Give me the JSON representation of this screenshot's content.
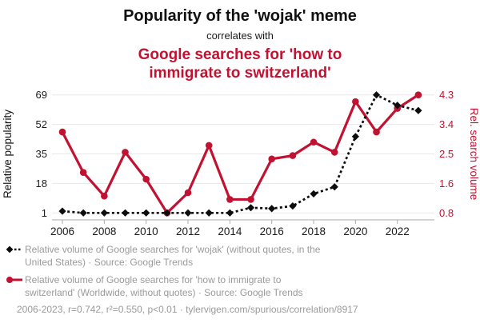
{
  "header": {
    "title": "Popularity of the 'wojak' meme",
    "connector": "correlates with",
    "subtitle_line1": "Google searches for 'how to",
    "subtitle_line2": "immigrate to switzerland'"
  },
  "colors": {
    "red": "#c11232",
    "black": "#0d0d0d",
    "gray_text": "#9a9a9a",
    "grid": "#e8e8e8",
    "axis": "#ababab"
  },
  "chart_data": {
    "type": "line",
    "title": "Popularity of the 'wojak' meme correlates with Google searches for 'how to immigrate to switzerland'",
    "x": [
      2006,
      2007,
      2008,
      2009,
      2010,
      2011,
      2012,
      2013,
      2014,
      2015,
      2016,
      2017,
      2018,
      2019,
      2020,
      2021,
      2022,
      2023
    ],
    "x_tick_labels": [
      "2006",
      "2008",
      "2010",
      "2012",
      "2014",
      "2016",
      "2018",
      "2020",
      "2022"
    ],
    "x_ticks": [
      2006,
      2008,
      2010,
      2012,
      2014,
      2016,
      2018,
      2020,
      2022
    ],
    "grid": true,
    "left_axis": {
      "label": "Relative popularity",
      "ticks": [
        1,
        18,
        35,
        52,
        69
      ],
      "range": [
        1,
        69
      ]
    },
    "right_axis": {
      "label": "Rel. search volume",
      "ticks": [
        "0.8",
        "1.6",
        "2.5",
        "3.4",
        "4.3"
      ],
      "range": [
        0.8,
        4.3
      ]
    },
    "series": [
      {
        "name": "wojak",
        "axis": "left",
        "style": "dashed",
        "marker": "diamond",
        "color": "#0d0d0d",
        "values": [
          2,
          1,
          1,
          1,
          1,
          1,
          1,
          1,
          1,
          4,
          3.5,
          5,
          12,
          16,
          45,
          69,
          63,
          60
        ]
      },
      {
        "name": "how to immigrate to switzerland",
        "axis": "right",
        "style": "solid",
        "marker": "circle",
        "color": "#c11232",
        "values": [
          3.2,
          2.0,
          1.3,
          2.6,
          1.8,
          0.8,
          1.4,
          2.8,
          1.2,
          1.2,
          2.4,
          2.5,
          2.9,
          2.6,
          4.1,
          3.2,
          3.9,
          4.3
        ]
      }
    ]
  },
  "legend": {
    "items": [
      {
        "line1": "Relative volume of Google searches for 'wojak' (without quotes, in the",
        "line2": "United States) · Source: Google Trends"
      },
      {
        "line1": "Relative volume of Google searches for 'how to immigrate to",
        "line2": "switzerland' (Worldwide, without quotes) · Source: Google Trends"
      }
    ]
  },
  "footer": {
    "text": "2006-2023, r=0.742, r²=0.550, p<0.01 · tylervigen.com/spurious/correlation/8917"
  }
}
